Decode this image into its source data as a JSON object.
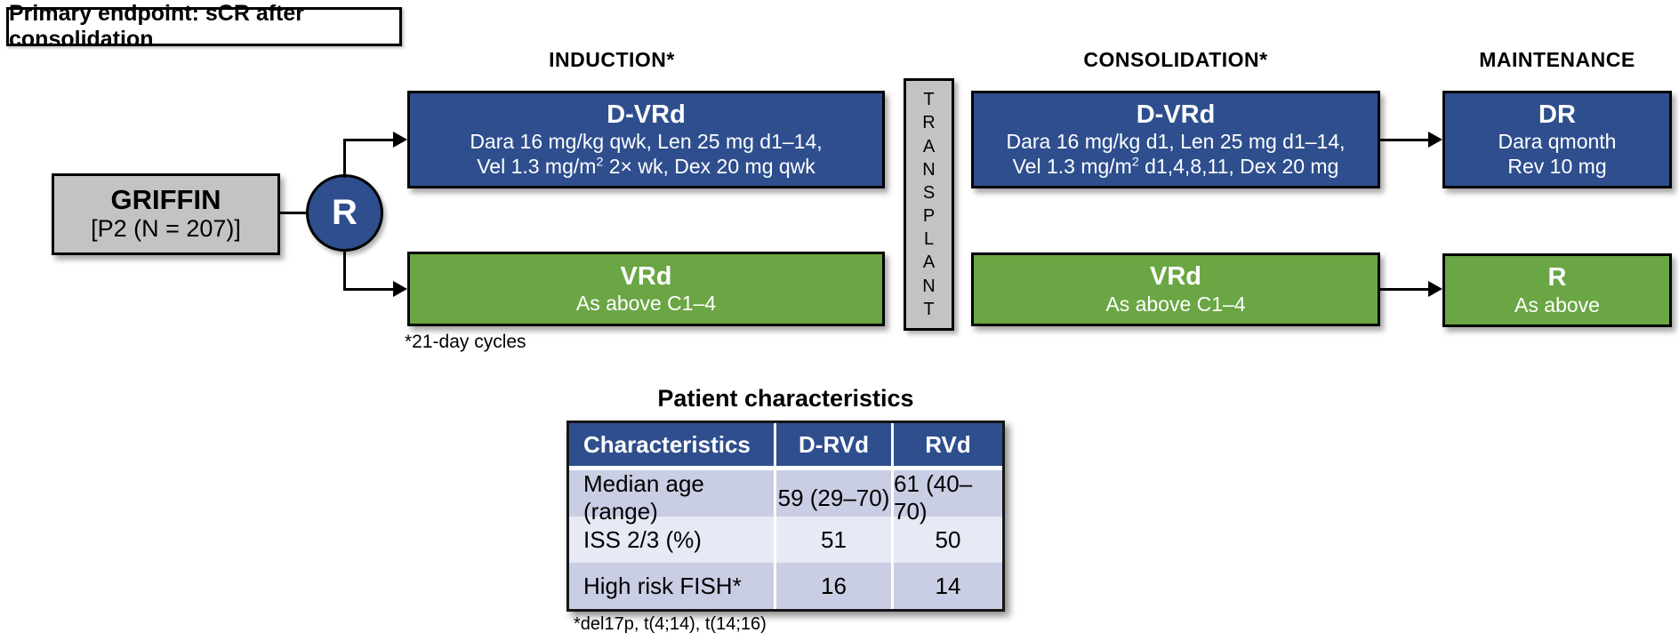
{
  "primary_endpoint": "Primary endpoint: sCR after consolidation",
  "study": {
    "name": "GRIFFIN",
    "detail": "[P2 (N = 207)]",
    "randomization_label": "R"
  },
  "phases": {
    "induction": {
      "label": "INDUCTION*",
      "dvrd": {
        "title": "D-VRd",
        "line1": "Dara 16 mg/kg qwk, Len 25 mg d1–14,",
        "line2_pre": "Vel 1.3 mg/m",
        "line2_sup": "2",
        "line2_post": " 2× wk, Dex 20 mg qwk"
      },
      "vrd": {
        "title": "VRd",
        "line1": "As above C1–4"
      }
    },
    "transplant": {
      "label": "TRANSPLANT"
    },
    "consolidation": {
      "label": "CONSOLIDATION*",
      "dvrd": {
        "title": "D-VRd",
        "line1": "Dara 16 mg/kg d1, Len 25 mg d1–14,",
        "line2_pre": "Vel 1.3 mg/m",
        "line2_sup": "2",
        "line2_post": " d1,4,8,11, Dex 20 mg"
      },
      "vrd": {
        "title": "VRd",
        "line1": "As above C1–4"
      }
    },
    "maintenance": {
      "label": "MAINTENANCE",
      "dr": {
        "title": "DR",
        "line1": "Dara qmonth",
        "line2": "Rev 10 mg"
      },
      "r": {
        "title": "R",
        "line1": "As above"
      }
    }
  },
  "footnotes": {
    "cycles": "*21-day cycles",
    "fish": "*del17p, t(4;14), t(14;16)"
  },
  "patient_table": {
    "title": "Patient characteristics",
    "headers": [
      "Characteristics",
      "D-RVd",
      "RVd"
    ],
    "rows": [
      [
        "Median age (range)",
        "59 (29–70)",
        "61 (40–70)"
      ],
      [
        "ISS 2/3 (%)",
        "51",
        "50"
      ],
      [
        "High risk FISH*",
        "16",
        "14"
      ]
    ]
  },
  "colors": {
    "arm_blue": "#2e4e8e",
    "arm_green": "#6aa644",
    "neutral_gray": "#c3c3c3",
    "table_header_blue": "#2e4e8e",
    "table_row_dark": "#c9cee4",
    "table_row_light": "#e7e9f4"
  }
}
